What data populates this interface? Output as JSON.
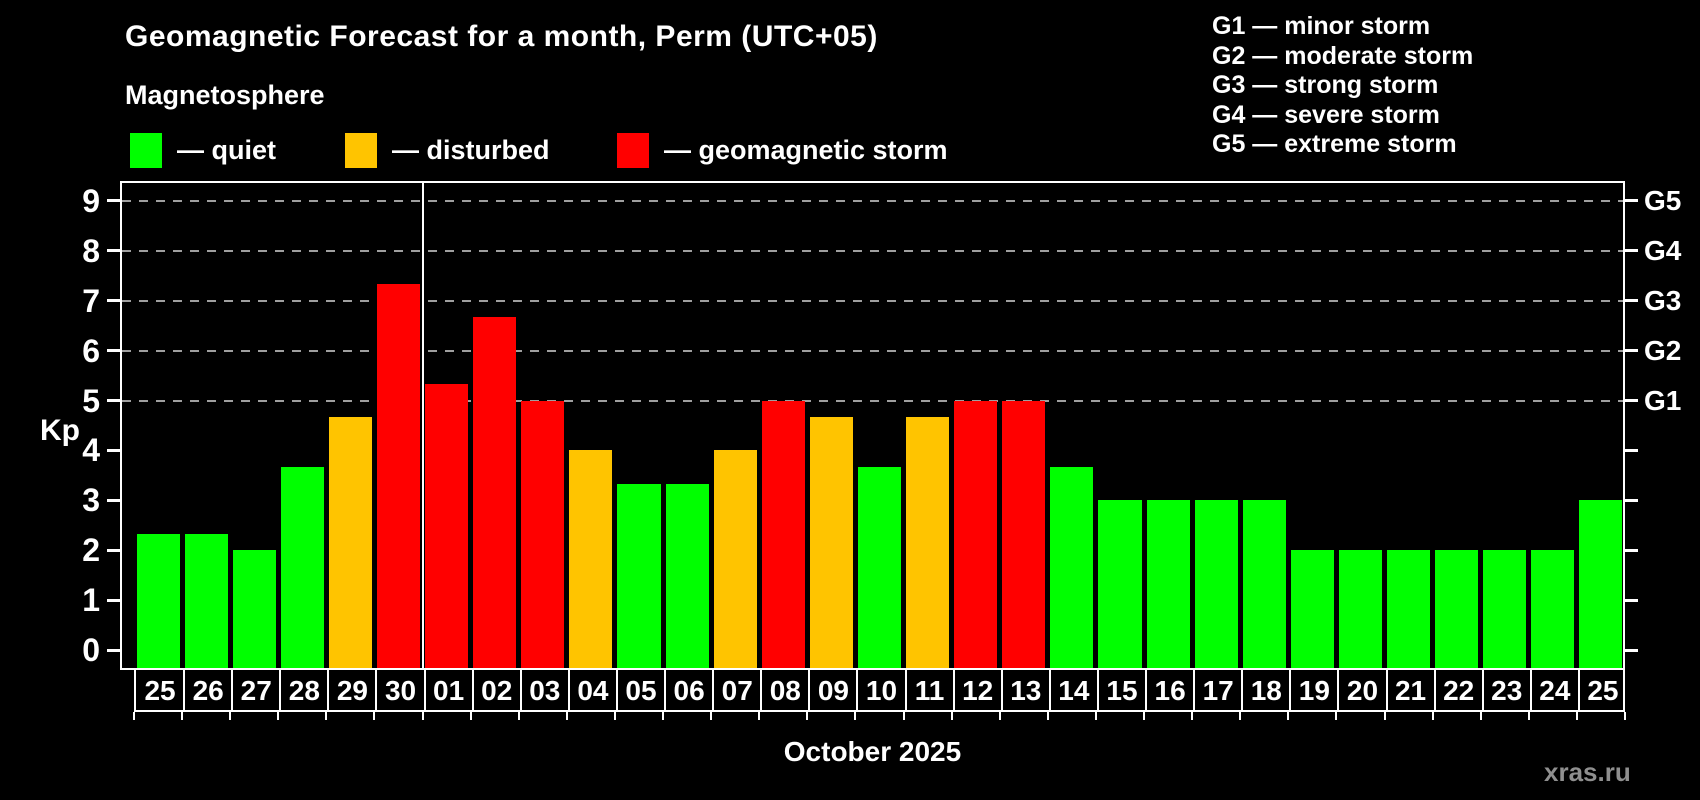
{
  "header": {
    "title": "Geomagnetic Forecast for a month, Perm (UTC+05)",
    "subtitle": "Magnetosphere"
  },
  "legend": {
    "items": [
      {
        "label": "— quiet",
        "status": "quiet",
        "color": "#00ff00"
      },
      {
        "label": "— disturbed",
        "status": "disturbed",
        "color": "#ffc400"
      },
      {
        "label": "— geomagnetic storm",
        "status": "storm",
        "color": "#ff0000"
      }
    ]
  },
  "g_legend": {
    "lines": [
      "G1 — minor storm",
      "G2 — moderate storm",
      "G3 — strong storm",
      "G4 — severe storm",
      "G5 — extreme storm"
    ]
  },
  "axis": {
    "y_ticks": [
      "0",
      "1",
      "2",
      "3",
      "4",
      "5",
      "6",
      "7",
      "8",
      "9"
    ]
  },
  "footer": {
    "watermark": "xras.ru"
  },
  "chart_data": {
    "type": "bar",
    "title": "Geomagnetic Forecast for a month, Perm (UTC+05)",
    "ylabel": "Kp",
    "xlabel": "October 2025",
    "ylim": [
      0,
      9
    ],
    "grid": "dashed horizontal at Kp 5-9 only",
    "legend_position": "top",
    "gridlines": [
      5,
      6,
      7,
      8,
      9
    ],
    "g_levels": [
      {
        "label": "G1",
        "kp": 5
      },
      {
        "label": "G2",
        "kp": 6
      },
      {
        "label": "G3",
        "kp": 7
      },
      {
        "label": "G4",
        "kp": 8
      },
      {
        "label": "G5",
        "kp": 9
      }
    ],
    "status_colors": {
      "quiet": "#00ff00",
      "disturbed": "#ffc400",
      "storm": "#ff0000"
    },
    "month_divider_after_index": 5,
    "bars": [
      {
        "day": "25",
        "kp": 2.33,
        "status": "quiet"
      },
      {
        "day": "26",
        "kp": 2.33,
        "status": "quiet"
      },
      {
        "day": "27",
        "kp": 2.0,
        "status": "quiet"
      },
      {
        "day": "28",
        "kp": 3.67,
        "status": "quiet"
      },
      {
        "day": "29",
        "kp": 4.67,
        "status": "disturbed"
      },
      {
        "day": "30",
        "kp": 7.33,
        "status": "storm"
      },
      {
        "day": "01",
        "kp": 5.33,
        "status": "storm"
      },
      {
        "day": "02",
        "kp": 6.67,
        "status": "storm"
      },
      {
        "day": "03",
        "kp": 5.0,
        "status": "storm"
      },
      {
        "day": "04",
        "kp": 4.0,
        "status": "disturbed"
      },
      {
        "day": "05",
        "kp": 3.33,
        "status": "quiet"
      },
      {
        "day": "06",
        "kp": 3.33,
        "status": "quiet"
      },
      {
        "day": "07",
        "kp": 4.0,
        "status": "disturbed"
      },
      {
        "day": "08",
        "kp": 5.0,
        "status": "storm"
      },
      {
        "day": "09",
        "kp": 4.67,
        "status": "disturbed"
      },
      {
        "day": "10",
        "kp": 3.67,
        "status": "quiet"
      },
      {
        "day": "11",
        "kp": 4.67,
        "status": "disturbed"
      },
      {
        "day": "12",
        "kp": 5.0,
        "status": "storm"
      },
      {
        "day": "13",
        "kp": 5.0,
        "status": "storm"
      },
      {
        "day": "14",
        "kp": 3.67,
        "status": "quiet"
      },
      {
        "day": "15",
        "kp": 3.0,
        "status": "quiet"
      },
      {
        "day": "16",
        "kp": 3.0,
        "status": "quiet"
      },
      {
        "day": "17",
        "kp": 3.0,
        "status": "quiet"
      },
      {
        "day": "18",
        "kp": 3.0,
        "status": "quiet"
      },
      {
        "day": "19",
        "kp": 2.0,
        "status": "quiet"
      },
      {
        "day": "20",
        "kp": 2.0,
        "status": "quiet"
      },
      {
        "day": "21",
        "kp": 2.0,
        "status": "quiet"
      },
      {
        "day": "22",
        "kp": 2.0,
        "status": "quiet"
      },
      {
        "day": "23",
        "kp": 2.0,
        "status": "quiet"
      },
      {
        "day": "24",
        "kp": 2.0,
        "status": "quiet"
      },
      {
        "day": "25",
        "kp": 3.0,
        "status": "quiet"
      }
    ]
  }
}
